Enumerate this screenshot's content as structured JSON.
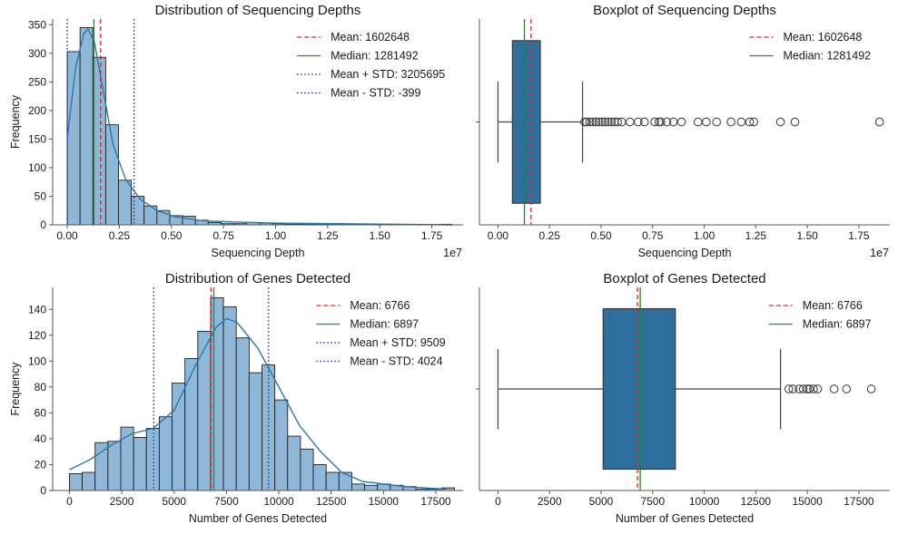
{
  "colors": {
    "bar_fill": "#8fb8d8",
    "bar_edge": "#1f1f1f",
    "kde": "#2a78b0",
    "box_fill": "#2e6f9e",
    "mean": "#e8202a",
    "median": "#0a9a0a",
    "std": "#2323d0"
  },
  "chart_data": [
    {
      "type": "histogram",
      "title": "Distribution of Sequencing Depths",
      "xlabel": "Sequencing Depth",
      "ylabel": "Frequency",
      "x_offset_label": "1e7",
      "xlim": [
        -700000,
        19000000
      ],
      "ylim": [
        0,
        360
      ],
      "x_ticks": [
        0,
        2500000,
        5000000,
        7500000,
        10000000,
        12500000,
        15000000,
        17500000
      ],
      "x_tick_labels": [
        "0.00",
        "0.25",
        "0.50",
        "0.75",
        "1.00",
        "1.25",
        "1.50",
        "1.75"
      ],
      "y_ticks": [
        0,
        50,
        100,
        150,
        200,
        250,
        300,
        350
      ],
      "bin_start": 0,
      "bin_width": 615000,
      "counts": [
        303,
        345,
        293,
        175,
        78,
        50,
        33,
        25,
        16,
        15,
        8,
        4,
        2,
        2,
        4,
        3,
        2,
        1,
        1,
        1,
        1,
        1,
        0,
        1,
        1,
        0,
        0,
        0,
        0,
        1
      ],
      "kde_x": [
        0,
        400000,
        800000,
        1000000,
        1300000,
        1700000,
        2200000,
        2800000,
        3500000,
        4300000,
        5200000,
        6500000,
        8000000,
        10000000,
        13000000,
        18500000
      ],
      "kde_y": [
        150,
        275,
        335,
        342,
        320,
        240,
        140,
        80,
        45,
        25,
        14,
        7,
        5,
        3,
        2,
        0
      ],
      "lines": [
        {
          "label": "Mean: 1602648",
          "value": 1602648,
          "style": "dashed",
          "color": "mean"
        },
        {
          "label": "Median: 1281492",
          "value": 1281492,
          "style": "solid",
          "color": "median"
        },
        {
          "label": "Mean + STD: 3205695",
          "value": 3205695,
          "style": "dotted",
          "color": "std"
        },
        {
          "label": "Mean - STD: -399",
          "value": -399,
          "style": "dotted",
          "color": "std"
        }
      ],
      "legend_position": "top-right"
    },
    {
      "type": "boxplot",
      "title": "Boxplot of Sequencing Depths",
      "xlabel": "Sequencing Depth",
      "x_offset_label": "1e7",
      "xlim": [
        -900000,
        19000000
      ],
      "x_ticks": [
        0,
        2500000,
        5000000,
        7500000,
        10000000,
        12500000,
        15000000,
        17500000
      ],
      "x_tick_labels": [
        "0.00",
        "0.25",
        "0.50",
        "0.75",
        "1.00",
        "1.25",
        "1.50",
        "1.75"
      ],
      "whisker_low": 0,
      "q1": 700000,
      "median": 1281492,
      "q3": 2050000,
      "whisker_high": 4100000,
      "outliers": [
        4200000,
        4300000,
        4450000,
        4600000,
        4750000,
        4900000,
        5050000,
        5200000,
        5350000,
        5500000,
        5650000,
        5800000,
        6000000,
        6400000,
        6800000,
        7100000,
        7600000,
        7800000,
        7900000,
        8200000,
        8500000,
        8900000,
        9700000,
        10100000,
        10600000,
        11300000,
        11800000,
        12200000,
        12400000,
        13700000,
        14400000,
        18500000
      ],
      "lines": [
        {
          "label": "Mean: 1602648",
          "value": 1602648,
          "style": "dashed",
          "color": "mean"
        },
        {
          "label": "Median: 1281492",
          "value": 1281492,
          "style": "solid",
          "color": "median"
        }
      ],
      "legend_position": "top-right"
    },
    {
      "type": "histogram",
      "title": "Distribution of Genes Detected",
      "xlabel": "Number of Genes Detected",
      "ylabel": "Frequency",
      "x_offset_label": "",
      "xlim": [
        -800,
        18800
      ],
      "ylim": [
        0,
        157
      ],
      "x_ticks": [
        0,
        2500,
        5000,
        7500,
        10000,
        12500,
        15000,
        17500
      ],
      "x_tick_labels": [
        "0",
        "2500",
        "5000",
        "7500",
        "10000",
        "12500",
        "15000",
        "17500"
      ],
      "y_ticks": [
        0,
        20,
        40,
        60,
        80,
        100,
        120,
        140
      ],
      "bin_start": 0,
      "bin_width": 613,
      "counts": [
        13,
        14,
        37,
        38,
        49,
        41,
        48,
        57,
        83,
        102,
        123,
        149,
        142,
        118,
        91,
        97,
        70,
        42,
        32,
        20,
        14,
        14,
        5,
        4,
        5,
        4,
        3,
        1,
        1,
        2
      ],
      "kde_x": [
        0,
        1000,
        2000,
        3000,
        4000,
        5000,
        6000,
        7000,
        7500,
        8000,
        9000,
        10000,
        11000,
        12000,
        13000,
        14000,
        15000,
        16000,
        17000,
        18000
      ],
      "kde_y": [
        16,
        24,
        35,
        44,
        48,
        62,
        96,
        126,
        133,
        130,
        110,
        80,
        50,
        30,
        14,
        7,
        5,
        3,
        2,
        1
      ],
      "lines": [
        {
          "label": "Mean: 6766",
          "value": 6766,
          "style": "dashed",
          "color": "mean"
        },
        {
          "label": "Median: 6897",
          "value": 6897,
          "style": "solid",
          "color": "median"
        },
        {
          "label": "Mean + STD: 9509",
          "value": 9509,
          "style": "dotted",
          "color": "std"
        },
        {
          "label": "Mean - STD: 4024",
          "value": 4024,
          "style": "dotted",
          "color": "std"
        }
      ],
      "legend_position": "top-right"
    },
    {
      "type": "boxplot",
      "title": "Boxplot of Genes Detected",
      "xlabel": "Number of Genes Detected",
      "x_offset_label": "",
      "xlim": [
        -900,
        19000
      ],
      "x_ticks": [
        0,
        2500,
        5000,
        7500,
        10000,
        12500,
        15000,
        17500
      ],
      "x_tick_labels": [
        "0",
        "2500",
        "5000",
        "7500",
        "10000",
        "12500",
        "15000",
        "17500"
      ],
      "whisker_low": 0,
      "q1": 5100,
      "median": 6897,
      "q3": 8600,
      "whisker_high": 13700,
      "outliers": [
        14100,
        14300,
        14600,
        14800,
        15000,
        15100,
        15300,
        15500,
        16300,
        16900,
        18100
      ],
      "lines": [
        {
          "label": "Mean: 6766",
          "value": 6766,
          "style": "dashed",
          "color": "mean"
        },
        {
          "label": "Median: 6897",
          "value": 6897,
          "style": "solid",
          "color": "median"
        }
      ],
      "legend_position": "top-right"
    }
  ]
}
